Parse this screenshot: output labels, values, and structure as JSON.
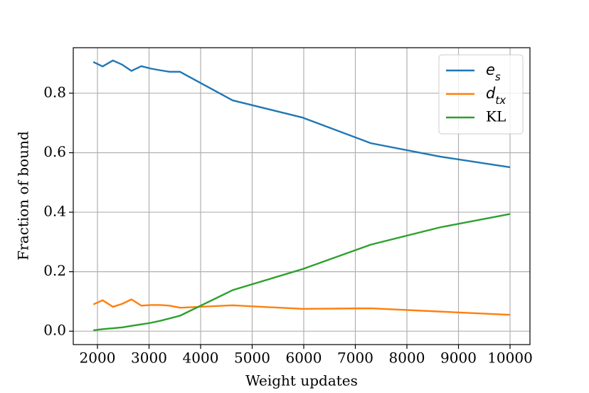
{
  "chart_data": {
    "type": "line",
    "x_label": "Weight updates",
    "y_label": "Fraction of bound",
    "x": [
      1920,
      2100,
      2300,
      2480,
      2660,
      2850,
      3030,
      3220,
      3400,
      3600,
      4620,
      5980,
      7300,
      8640,
      10000
    ],
    "series": [
      {
        "name": "e_s",
        "color": "#1f77b4",
        "values": [
          0.905,
          0.89,
          0.91,
          0.896,
          0.875,
          0.891,
          0.883,
          0.877,
          0.872,
          0.872,
          0.776,
          0.718,
          0.632,
          0.587,
          0.551
        ]
      },
      {
        "name": "d_tx",
        "color": "#ff7f0e",
        "values": [
          0.09,
          0.104,
          0.082,
          0.092,
          0.107,
          0.086,
          0.088,
          0.088,
          0.086,
          0.079,
          0.087,
          0.075,
          0.077,
          0.066,
          0.055
        ]
      },
      {
        "name": "KL",
        "color": "#2ca02c",
        "values": [
          0.003,
          0.007,
          0.01,
          0.013,
          0.018,
          0.023,
          0.028,
          0.035,
          0.043,
          0.052,
          0.138,
          0.209,
          0.291,
          0.349,
          0.394
        ]
      }
    ],
    "xlim": [
      1531,
      10386
    ],
    "xticks": [
      2000,
      3000,
      4000,
      5000,
      6000,
      7000,
      8000,
      9000,
      10000
    ],
    "ylim": [
      -0.045,
      0.953
    ],
    "yticks": [
      {
        "value": 0,
        "label": "0.0"
      },
      0.2,
      0.4,
      0.6,
      0.8
    ],
    "grid": true,
    "legend": "upper right"
  }
}
